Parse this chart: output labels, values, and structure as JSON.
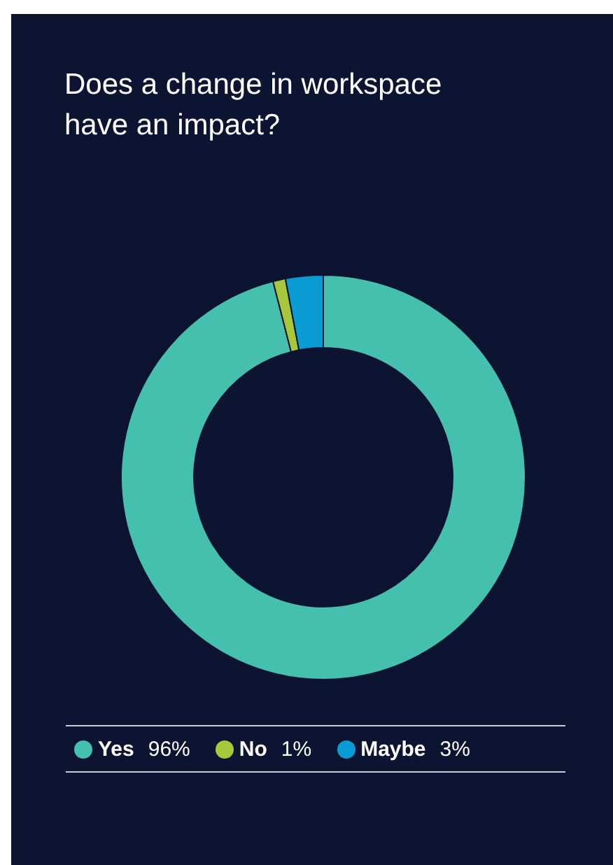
{
  "chart_data": {
    "type": "donut",
    "title": "Does a change in workspace have an impact?",
    "categories": [
      "Yes",
      "No",
      "Maybe"
    ],
    "values": [
      96,
      1,
      3
    ],
    "colors": [
      "#45c0ae",
      "#a6c83a",
      "#0a9bd3"
    ],
    "value_labels": [
      "96%",
      "1%",
      "3%"
    ],
    "legend": "bottom"
  }
}
